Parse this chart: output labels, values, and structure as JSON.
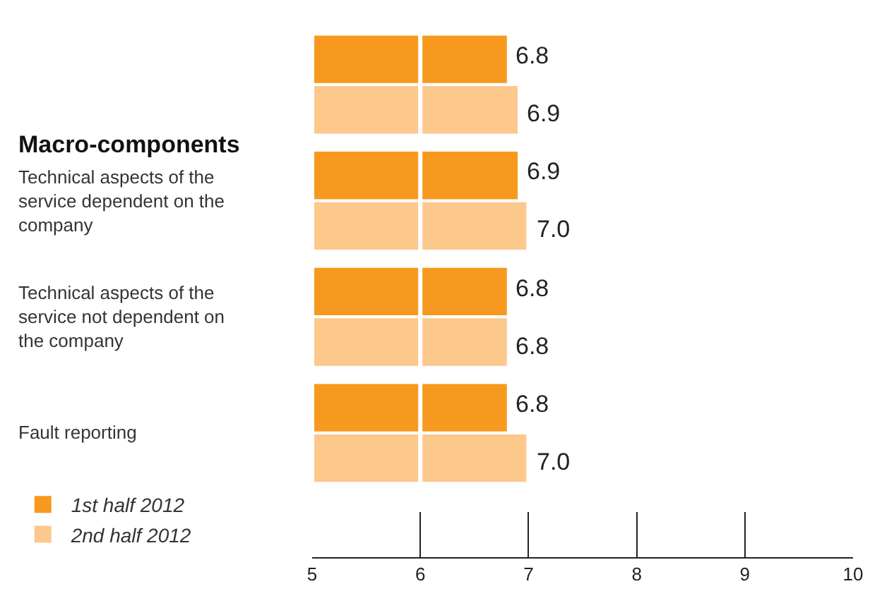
{
  "chart_data": {
    "type": "bar",
    "orientation": "horizontal",
    "categories": [
      null,
      "Technical aspects of the service dependent on the company",
      "Technical aspects of the service not dependent on the company",
      "Fault reporting"
    ],
    "series": [
      {
        "name": "1st half 2012",
        "color": "#f7991f",
        "values": [
          6.8,
          6.9,
          6.8,
          6.8
        ],
        "value_labels": [
          "6.8",
          "6.9",
          "6.8",
          "6.8"
        ]
      },
      {
        "name": "2nd half 2012",
        "color": "#fcc88c",
        "values": [
          6.9,
          7.0,
          6.8,
          7.0
        ],
        "value_labels": [
          "6.9",
          "7.0",
          "6.8",
          "7.0"
        ]
      }
    ],
    "xlim": [
      5,
      10
    ],
    "xticks": [
      5,
      6,
      7,
      8,
      9,
      10
    ],
    "grid": "x",
    "legend": "bottom left",
    "annotations": [
      "Macro-components"
    ]
  }
}
